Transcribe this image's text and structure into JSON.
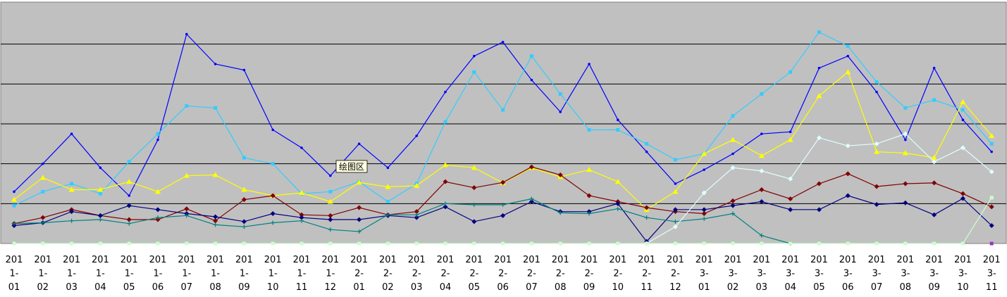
{
  "chart_data": {
    "type": "line",
    "title": "",
    "xlabel": "",
    "ylabel": "",
    "ylim": [
      0,
      6
    ],
    "grid": true,
    "legend": "none",
    "plot_background": "#C0C0C0",
    "tooltip": "绘图区",
    "categories": [
      [
        "201",
        "1-",
        "01"
      ],
      [
        "201",
        "1-",
        "02"
      ],
      [
        "201",
        "1-",
        "03"
      ],
      [
        "201",
        "1-",
        "04"
      ],
      [
        "201",
        "1-",
        "05"
      ],
      [
        "201",
        "1-",
        "06"
      ],
      [
        "201",
        "1-",
        "07"
      ],
      [
        "201",
        "1-",
        "08"
      ],
      [
        "201",
        "1-",
        "09"
      ],
      [
        "201",
        "1-",
        "10"
      ],
      [
        "201",
        "1-",
        "11"
      ],
      [
        "201",
        "1-",
        "12"
      ],
      [
        "201",
        "2-",
        "01"
      ],
      [
        "201",
        "2-",
        "02"
      ],
      [
        "201",
        "2-",
        "03"
      ],
      [
        "201",
        "2-",
        "04"
      ],
      [
        "201",
        "2-",
        "05"
      ],
      [
        "201",
        "2-",
        "06"
      ],
      [
        "201",
        "2-",
        "07"
      ],
      [
        "201",
        "2-",
        "08"
      ],
      [
        "201",
        "2-",
        "09"
      ],
      [
        "201",
        "2-",
        "10"
      ],
      [
        "201",
        "2-",
        "11"
      ],
      [
        "201",
        "2-",
        "12"
      ],
      [
        "201",
        "3-",
        "01"
      ],
      [
        "201",
        "3-",
        "02"
      ],
      [
        "201",
        "3-",
        "03"
      ],
      [
        "201",
        "3-",
        "04"
      ],
      [
        "201",
        "3-",
        "05"
      ],
      [
        "201",
        "3-",
        "06"
      ],
      [
        "201",
        "3-",
        "07"
      ],
      [
        "201",
        "3-",
        "08"
      ],
      [
        "201",
        "3-",
        "09"
      ],
      [
        "201",
        "3-",
        "10"
      ],
      [
        "201",
        "3-",
        "11"
      ]
    ],
    "series": [
      {
        "color": "#0000FF",
        "marker": "dot",
        "values": [
          1.3,
          2.0,
          2.75,
          1.9,
          1.2,
          2.6,
          5.25,
          4.5,
          4.35,
          2.85,
          2.4,
          1.7,
          2.5,
          1.9,
          2.7,
          3.8,
          4.7,
          5.05,
          4.1,
          3.3,
          4.5,
          3.1,
          2.3,
          1.5,
          1.85,
          2.25,
          2.75,
          2.8,
          4.4,
          4.7,
          3.8,
          2.6,
          4.4,
          3.1,
          2.3
        ]
      },
      {
        "color": "#33CCFF",
        "marker": "square",
        "values": [
          0.95,
          1.3,
          1.5,
          1.25,
          2.05,
          2.75,
          3.45,
          3.4,
          2.15,
          2.0,
          1.25,
          1.3,
          1.55,
          1.05,
          1.5,
          3.05,
          4.3,
          3.35,
          4.7,
          3.75,
          2.85,
          2.85,
          2.5,
          2.1,
          2.25,
          3.2,
          3.75,
          4.3,
          5.3,
          4.95,
          4.05,
          3.4,
          3.6,
          3.35,
          2.5
        ]
      },
      {
        "color": "#FFFF00",
        "marker": "triangle",
        "values": [
          1.1,
          1.65,
          1.35,
          1.35,
          1.55,
          1.3,
          1.7,
          1.72,
          1.35,
          1.2,
          1.27,
          1.05,
          1.53,
          1.42,
          1.45,
          1.97,
          1.9,
          1.52,
          1.9,
          1.67,
          1.85,
          1.55,
          0.85,
          1.3,
          2.25,
          2.6,
          2.2,
          2.6,
          3.7,
          4.3,
          2.3,
          2.27,
          2.15,
          3.55,
          2.7
        ]
      },
      {
        "color": "#800000",
        "marker": "diamond",
        "values": [
          0.5,
          0.65,
          0.85,
          0.7,
          0.6,
          0.6,
          0.87,
          0.57,
          1.1,
          1.2,
          0.72,
          0.7,
          0.9,
          0.72,
          0.8,
          1.55,
          1.4,
          1.53,
          1.92,
          1.72,
          1.2,
          1.05,
          0.9,
          0.8,
          0.75,
          1.07,
          1.35,
          1.12,
          1.5,
          1.75,
          1.43,
          1.5,
          1.52,
          1.25,
          0.92
        ]
      },
      {
        "color": "#000080",
        "marker": "diamond",
        "values": [
          0.45,
          0.52,
          0.8,
          0.7,
          0.95,
          0.85,
          0.75,
          0.67,
          0.55,
          0.75,
          0.65,
          0.6,
          0.6,
          0.7,
          0.65,
          0.92,
          0.55,
          0.7,
          1.05,
          0.8,
          0.8,
          1.0,
          0.05,
          0.85,
          0.85,
          0.95,
          1.05,
          0.85,
          0.85,
          1.2,
          0.98,
          1.02,
          0.72,
          1.13,
          0.45
        ]
      },
      {
        "color": "#008080",
        "marker": "plus",
        "values": [
          0.5,
          0.52,
          0.57,
          0.6,
          0.5,
          0.65,
          0.7,
          0.47,
          0.42,
          0.52,
          0.57,
          0.35,
          0.3,
          0.72,
          0.72,
          1.0,
          0.97,
          0.97,
          1.12,
          0.77,
          0.75,
          0.87,
          0.65,
          0.55,
          0.62,
          0.75,
          0.2,
          0.0,
          null,
          null,
          null,
          null,
          null,
          null,
          null
        ]
      },
      {
        "color": "#E0FFFF",
        "marker": "diamond",
        "values": [
          null,
          null,
          null,
          null,
          null,
          null,
          null,
          null,
          null,
          null,
          null,
          null,
          null,
          null,
          null,
          null,
          null,
          null,
          null,
          null,
          null,
          null,
          0.0,
          0.42,
          1.27,
          1.9,
          1.82,
          1.62,
          2.65,
          2.45,
          2.5,
          2.75,
          2.05,
          2.4,
          1.8
        ]
      },
      {
        "color": "#CCFFCC",
        "marker": "square",
        "values": [
          0.0,
          0.0,
          0.0,
          0.0,
          0.0,
          0.0,
          0.0,
          0.0,
          0.0,
          0.0,
          0.0,
          0.0,
          0.0,
          0.0,
          0.0,
          0.0,
          0.0,
          0.0,
          0.0,
          0.0,
          0.0,
          0.0,
          0.0,
          0.0,
          0.0,
          0.0,
          0.0,
          0.0,
          0.0,
          0.0,
          0.0,
          0.0,
          0.0,
          0.0,
          1.15
        ]
      },
      {
        "color": "#9933CC",
        "marker": "square",
        "values": [
          null,
          null,
          null,
          null,
          null,
          null,
          null,
          null,
          null,
          null,
          null,
          null,
          null,
          null,
          null,
          null,
          null,
          null,
          null,
          null,
          null,
          null,
          null,
          null,
          null,
          null,
          null,
          null,
          null,
          null,
          null,
          null,
          null,
          null,
          0.0
        ]
      }
    ]
  }
}
